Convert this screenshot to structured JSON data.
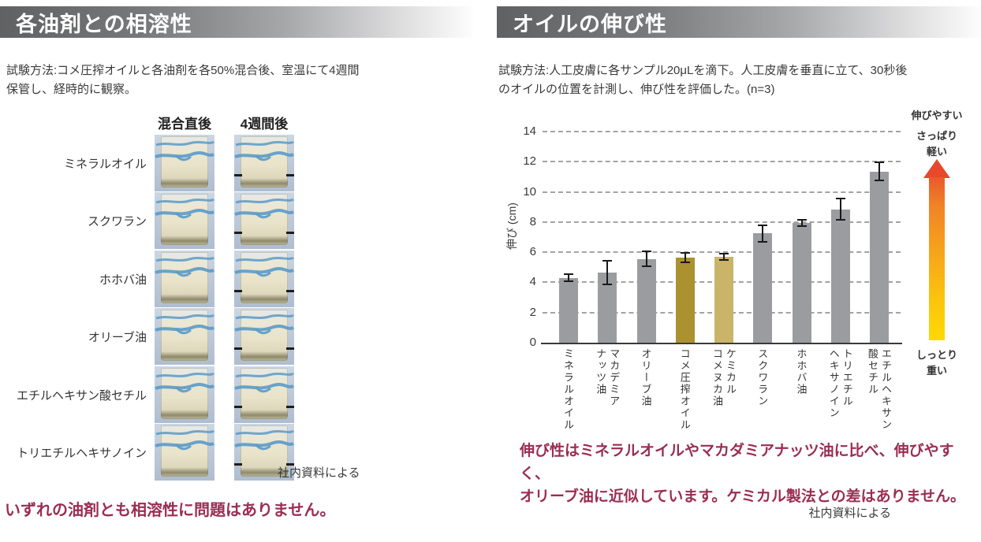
{
  "left_panel": {
    "title": "各油剤との相溶性",
    "method_lines": [
      "試験方法:コメ圧搾オイルと各油剤を各50%混合後、室温にて4週間",
      "保管し、経時的に観察。"
    ],
    "columns": [
      "混合直後",
      "4週間後"
    ],
    "rows": [
      {
        "label": "ミネラルオイル"
      },
      {
        "label": "スクワラン"
      },
      {
        "label": "ホホバ油"
      },
      {
        "label": "オリーブ油"
      },
      {
        "label": "エチルヘキサン酸セチル"
      },
      {
        "label": "トリエチルヘキサノイン"
      }
    ],
    "source": "社内資料による",
    "conclusion": "いずれの油剤とも相溶性に問題はありません。"
  },
  "right_panel": {
    "title": "オイルの伸び性",
    "method_lines": [
      "試験方法:人工皮膚に各サンプル20μLを滴下。人工皮膚を垂直に立て、30秒後",
      "のオイルの位置を計測し、伸び性を評価した。(n=3)"
    ],
    "annotation": {
      "top1": "伸びやすい",
      "top2": "さっぱり",
      "top3": "軽い",
      "bottom1": "しっとり",
      "bottom2": "重い"
    },
    "conclusion_lines": [
      "伸び性はミネラルオイルやマカダミアナッツ油に比べ、伸びやすく、",
      "オリーブ油に近似しています。ケミカル製法との差はありません。"
    ],
    "source": "社内資料による"
  },
  "chart_data": {
    "type": "bar",
    "title": "",
    "xlabel": "",
    "ylabel": "伸び (cm)",
    "ylim": [
      0,
      14
    ],
    "ytick_step": 2,
    "grid": "horizontal-dashed",
    "legend": "none",
    "error_bars": true,
    "categories": [
      "ミネラルオイル",
      "マカデミア\nナッツ油",
      "オリーブ油",
      "コメ圧搾オイル",
      "ケミカル\nコメヌカ油",
      "スクワラン",
      "ホホバ油",
      "トリエチル\nヘキサノイン",
      "エチルヘキサン\n酸セチル"
    ],
    "values": [
      4.3,
      4.65,
      5.55,
      5.65,
      5.7,
      7.25,
      7.95,
      8.85,
      11.35
    ],
    "errors": [
      0.25,
      0.8,
      0.5,
      0.3,
      0.2,
      0.55,
      0.2,
      0.7,
      0.6
    ],
    "bar_colors": [
      "#9b9ca0",
      "#9b9ca0",
      "#9b9ca0",
      "#ab9130",
      "#c9b469",
      "#9b9ca0",
      "#9b9ca0",
      "#9b9ca0",
      "#9b9ca0"
    ]
  },
  "colors": {
    "maroon_text": "#9b2d52",
    "bar_gray": "#9b9ca0",
    "bar_gold_dark": "#ab9130",
    "bar_gold_light": "#c9b469",
    "arrow_top": "#e8492c",
    "arrow_bottom": "#ffd903",
    "header_dark": "#606163",
    "squiggle_blue": "#5a9ac9"
  }
}
